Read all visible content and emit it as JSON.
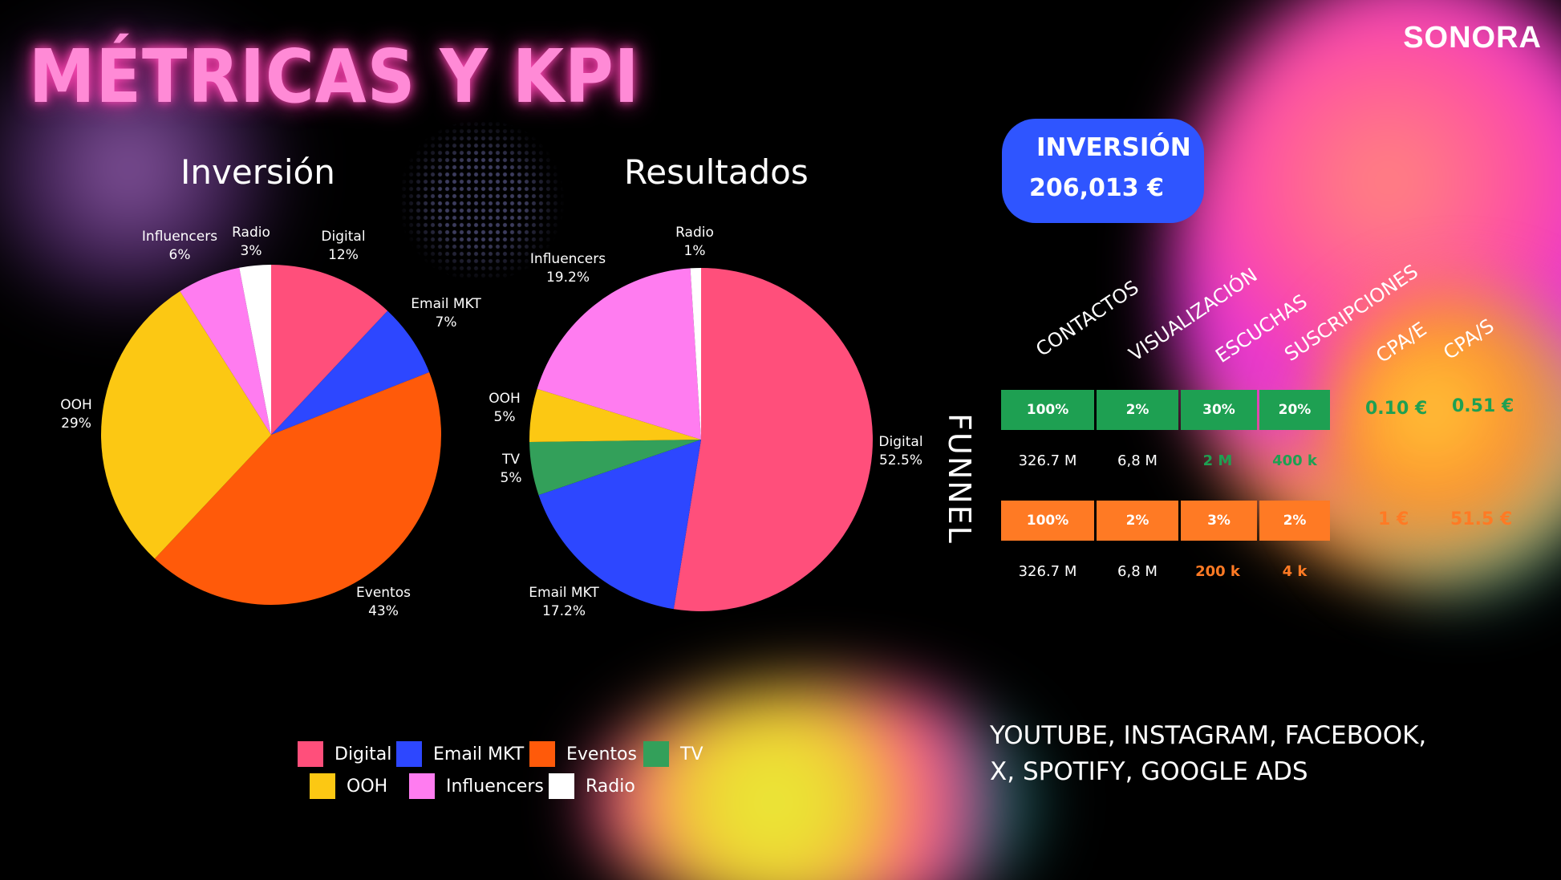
{
  "brand": "SONORA",
  "title": "MÉTRICAS Y KPI",
  "colors": {
    "Digital": "#ff4f7b",
    "Email MKT": "#2d47ff",
    "Eventos": "#ff5a0a",
    "TV": "#33a05a",
    "OOH": "#fcc813",
    "Influencers": "#ff7cf0",
    "Radio": "#ffffff",
    "green": "#1ea052",
    "orange": "#ff7a24",
    "blue": "#2f55ff"
  },
  "chart_data": [
    {
      "type": "pie",
      "title": "Inversión",
      "categories": [
        "Digital",
        "Email MKT",
        "Eventos",
        "OOH",
        "Influencers",
        "Radio"
      ],
      "values": [
        12,
        7,
        43,
        29,
        6,
        3
      ],
      "labels": [
        "12%",
        "7%",
        "43%",
        "29%",
        "6%",
        "3%"
      ]
    },
    {
      "type": "pie",
      "title": "Resultados",
      "categories": [
        "Digital",
        "Email MKT",
        "TV",
        "OOH",
        "Influencers",
        "Radio"
      ],
      "values": [
        52.5,
        17.2,
        5,
        5,
        19.2,
        1
      ],
      "labels": [
        "52.5%",
        "17.2%",
        "5%",
        "5%",
        "19.2%",
        "1%"
      ]
    },
    {
      "type": "table",
      "title": "FUNNEL",
      "columns": [
        "CONTACTOS",
        "VISUALIZACIÓN",
        "ESCUCHAS",
        "SUSCRIPCIONES",
        "CPA/E",
        "CPA/S"
      ],
      "rows": [
        {
          "percents": [
            "100%",
            "2%",
            "30%",
            "20%"
          ],
          "counts": [
            "326.7 M",
            "6,8 M",
            "2 M",
            "400 k"
          ],
          "cpa_e": "0.10 €",
          "cpa_s": "0.51 €"
        },
        {
          "percents": [
            "100%",
            "2%",
            "3%",
            "2%"
          ],
          "counts": [
            "326.7 M",
            "6,8 M",
            "200 k",
            "4 k"
          ],
          "cpa_e": "1 €",
          "cpa_s": "51.5 €"
        }
      ]
    }
  ],
  "investment": {
    "label": "INVERSIÓN",
    "value": "206,013 €"
  },
  "channels": {
    "line1": "YOUTUBE, INSTAGRAM, FACEBOOK,",
    "line2": "X, SPOTIFY, GOOGLE ADS"
  },
  "legend": [
    "Digital",
    "Email MKT",
    "Eventos",
    "TV",
    "OOH",
    "Influencers",
    "Radio"
  ]
}
